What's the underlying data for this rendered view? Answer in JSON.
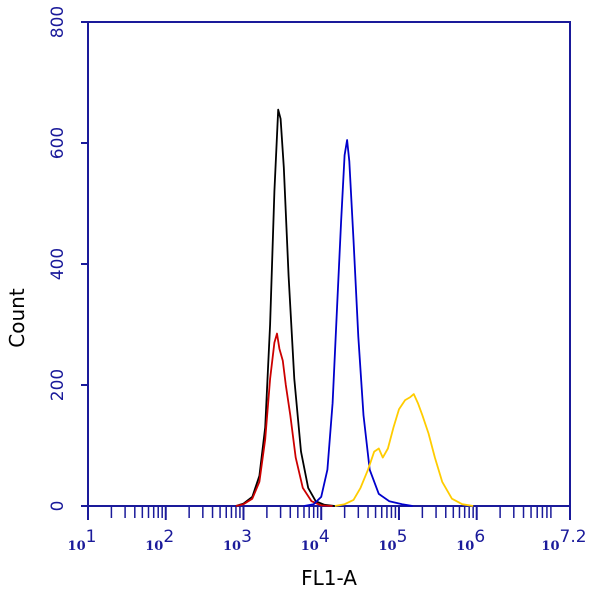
{
  "chart_data": {
    "type": "line",
    "xlabel": "FL1-A",
    "ylabel": "Count",
    "xscale": "log",
    "xlim": [
      10,
      15848932
    ],
    "ylim": [
      0,
      800
    ],
    "y_ticks": [
      "0",
      "200",
      "400",
      "600",
      "800"
    ],
    "x_ticks": [
      {
        "base": "10",
        "exp": "1",
        "value": 10
      },
      {
        "base": "10",
        "exp": "2",
        "value": 100
      },
      {
        "base": "10",
        "exp": "3",
        "value": 1000
      },
      {
        "base": "10",
        "exp": "4",
        "value": 10000
      },
      {
        "base": "10",
        "exp": "5",
        "value": 100000
      },
      {
        "base": "10",
        "exp": "6",
        "value": 1000000
      },
      {
        "base": "10",
        "exp": "7.2",
        "value": 15848932
      }
    ],
    "grid": false,
    "legend": "none",
    "series": [
      {
        "color": "#000000",
        "points": [
          [
            800,
            0
          ],
          [
            1000,
            4
          ],
          [
            1300,
            15
          ],
          [
            1600,
            50
          ],
          [
            1900,
            130
          ],
          [
            2200,
            300
          ],
          [
            2500,
            520
          ],
          [
            2800,
            655
          ],
          [
            3000,
            640
          ],
          [
            3300,
            560
          ],
          [
            3800,
            380
          ],
          [
            4500,
            210
          ],
          [
            5500,
            90
          ],
          [
            6800,
            30
          ],
          [
            8500,
            8
          ],
          [
            11000,
            2
          ],
          [
            15000,
            0
          ]
        ]
      },
      {
        "color": "#cc0000",
        "points": [
          [
            800,
            0
          ],
          [
            1000,
            3
          ],
          [
            1300,
            12
          ],
          [
            1600,
            40
          ],
          [
            1900,
            110
          ],
          [
            2200,
            210
          ],
          [
            2500,
            270
          ],
          [
            2700,
            285
          ],
          [
            2900,
            260
          ],
          [
            3200,
            240
          ],
          [
            3500,
            200
          ],
          [
            4000,
            150
          ],
          [
            4700,
            80
          ],
          [
            5800,
            30
          ],
          [
            7500,
            8
          ],
          [
            10000,
            1
          ],
          [
            14000,
            0
          ]
        ]
      },
      {
        "color": "#0000cc",
        "points": [
          [
            6000,
            0
          ],
          [
            8000,
            3
          ],
          [
            10000,
            15
          ],
          [
            12000,
            60
          ],
          [
            14000,
            170
          ],
          [
            16000,
            330
          ],
          [
            18000,
            470
          ],
          [
            20000,
            580
          ],
          [
            21500,
            605
          ],
          [
            23000,
            570
          ],
          [
            26000,
            440
          ],
          [
            30000,
            280
          ],
          [
            35000,
            150
          ],
          [
            42000,
            60
          ],
          [
            55000,
            20
          ],
          [
            75000,
            8
          ],
          [
            110000,
            3
          ],
          [
            150000,
            0
          ]
        ]
      },
      {
        "color": "#ffcc00",
        "points": [
          [
            15000,
            0
          ],
          [
            20000,
            3
          ],
          [
            26000,
            10
          ],
          [
            32000,
            30
          ],
          [
            40000,
            60
          ],
          [
            48000,
            90
          ],
          [
            55000,
            95
          ],
          [
            62000,
            80
          ],
          [
            72000,
            95
          ],
          [
            85000,
            130
          ],
          [
            100000,
            160
          ],
          [
            120000,
            175
          ],
          [
            140000,
            180
          ],
          [
            155000,
            185
          ],
          [
            175000,
            170
          ],
          [
            200000,
            150
          ],
          [
            240000,
            120
          ],
          [
            290000,
            80
          ],
          [
            360000,
            40
          ],
          [
            480000,
            12
          ],
          [
            650000,
            3
          ],
          [
            900000,
            0
          ]
        ]
      }
    ]
  }
}
